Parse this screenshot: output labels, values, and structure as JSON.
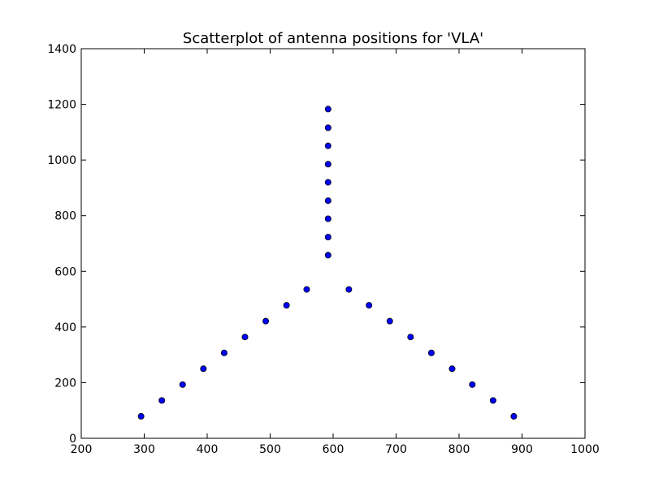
{
  "chart_data": {
    "type": "scatter",
    "title": "Scatterplot of antenna positions for 'VLA'",
    "xlabel": "",
    "ylabel": "",
    "xlim": [
      200,
      1000
    ],
    "ylim": [
      0,
      1400
    ],
    "xticks": [
      200,
      300,
      400,
      500,
      600,
      700,
      800,
      900,
      1000
    ],
    "yticks": [
      0,
      200,
      400,
      600,
      800,
      1000,
      1200,
      1400
    ],
    "xtick_labels": [
      "200",
      "300",
      "400",
      "500",
      "600",
      "700",
      "800",
      "900",
      "1000"
    ],
    "ytick_labels": [
      "0",
      "200",
      "400",
      "600",
      "800",
      "1000",
      "1200",
      "1400"
    ],
    "grid": false,
    "marker_color": "#0000ff",
    "marker_edge_color": "#000000",
    "series": [
      {
        "x": [
          592,
          592,
          592,
          592,
          592,
          592,
          592,
          592,
          592,
          558,
          526,
          493,
          460,
          427,
          394,
          361,
          328,
          295,
          625,
          657,
          690,
          723,
          756,
          789,
          821,
          854,
          887
        ],
        "y": [
          1183,
          1116,
          1051,
          985,
          920,
          854,
          789,
          723,
          658,
          535,
          478,
          421,
          364,
          307,
          250,
          193,
          136,
          79,
          535,
          478,
          421,
          364,
          307,
          250,
          193,
          136,
          79
        ]
      }
    ]
  }
}
